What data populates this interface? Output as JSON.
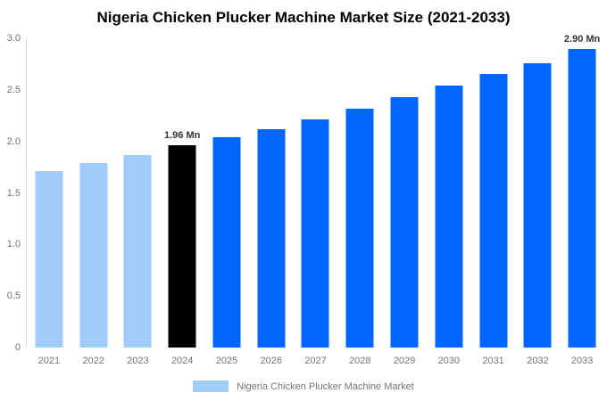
{
  "chart_data": {
    "type": "bar",
    "title": "Nigeria Chicken Plucker Machine Market Size (2021-2033)",
    "categories": [
      "2021",
      "2022",
      "2023",
      "2024",
      "2025",
      "2026",
      "2027",
      "2028",
      "2029",
      "2030",
      "2031",
      "2032",
      "2033"
    ],
    "values": [
      1.71,
      1.79,
      1.87,
      1.96,
      2.04,
      2.12,
      2.21,
      2.32,
      2.43,
      2.54,
      2.65,
      2.76,
      2.9
    ],
    "unit": "Mn",
    "bar_colors": [
      "#A0CCFC",
      "#A0CCFC",
      "#A0CCFC",
      "#000000",
      "#0066FF",
      "#0066FF",
      "#0066FF",
      "#0066FF",
      "#0066FF",
      "#0066FF",
      "#0066FF",
      "#0066FF",
      "#0066FF"
    ],
    "data_labels": [
      {
        "category": "2024",
        "text": "1.96 Mn"
      },
      {
        "category": "2033",
        "text": "2.90 Mn"
      }
    ],
    "xlabel": "",
    "ylabel": "",
    "ylim": [
      0,
      3
    ],
    "yticks": [
      "0",
      "0.5",
      "1.0",
      "1.5",
      "2.0",
      "2.5",
      "3.0"
    ],
    "grid": false,
    "legend": {
      "position": "bottom",
      "entries": [
        {
          "label": "Nigeria Chicken Plucker Machine Market",
          "swatch_color": "#A0CCFC"
        }
      ]
    }
  },
  "colors": {
    "background": "#FFFFFF",
    "title_text": "#000000",
    "axis_line": "#D9D9D9",
    "tick_text": "#757575",
    "data_label_text": "#333333",
    "highlight_bar": "#000000",
    "historical_bar": "#A0CCFC",
    "forecast_bar": "#0066FF"
  }
}
